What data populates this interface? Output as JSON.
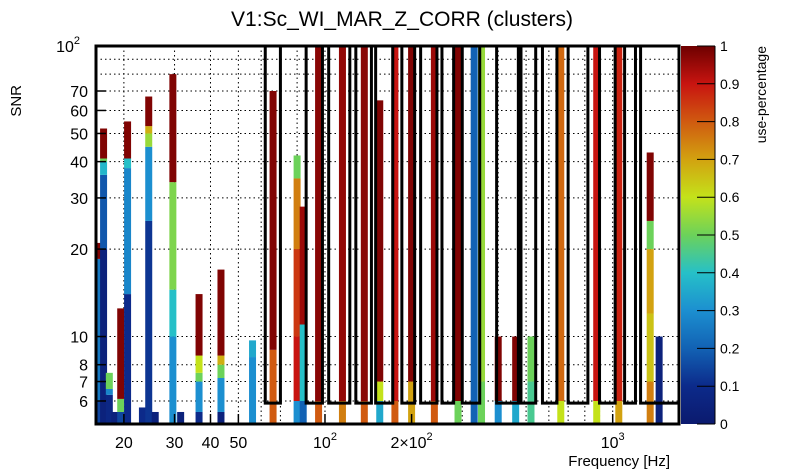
{
  "chart_data": {
    "type": "heatmap",
    "title": "V1:Sc_WI_MAR_Z_CORR (clusters)",
    "xlabel": "Frequency [Hz]",
    "ylabel": "SNR",
    "xscale": "log",
    "yscale": "log",
    "xlim": [
      16,
      1700
    ],
    "ylim": [
      5,
      100
    ],
    "grid": true,
    "x_tick_labels": [
      {
        "value": 20,
        "label": "20"
      },
      {
        "value": 30,
        "label": "30"
      },
      {
        "value": 40,
        "label": "40"
      },
      {
        "value": 50,
        "label": "50"
      },
      {
        "value": 100,
        "label": "10",
        "exp": "2"
      },
      {
        "value": 200,
        "label": "2×10",
        "exp": "2"
      },
      {
        "value": 1000,
        "label": "10",
        "exp": "3"
      }
    ],
    "y_tick_labels": [
      {
        "value": 6,
        "label": "6"
      },
      {
        "value": 7,
        "label": "7"
      },
      {
        "value": 8,
        "label": "8"
      },
      {
        "value": 10,
        "label": "10"
      },
      {
        "value": 20,
        "label": "20"
      },
      {
        "value": 30,
        "label": "30"
      },
      {
        "value": 40,
        "label": "40"
      },
      {
        "value": 50,
        "label": "50"
      },
      {
        "value": 60,
        "label": "60"
      },
      {
        "value": 70,
        "label": "70"
      },
      {
        "value": 100,
        "label": "10",
        "exp": "2"
      }
    ],
    "colorbar": {
      "label": "use-percentage",
      "range": [
        0,
        1
      ],
      "ticks": [
        "0",
        "0.1",
        "0.2",
        "0.3",
        "0.4",
        "0.5",
        "0.6",
        "0.7",
        "0.8",
        "0.9",
        "1"
      ]
    },
    "columns": [
      {
        "f": 16.4,
        "segments": [
          [
            5,
            6,
            0.15
          ],
          [
            6,
            18.5,
            0.25
          ],
          [
            18.5,
            21,
            0.98
          ]
        ]
      },
      {
        "f": 17.0,
        "segments": [
          [
            5,
            20,
            0.05
          ],
          [
            20,
            36,
            0.18
          ],
          [
            36,
            40,
            0.38
          ],
          [
            40,
            41,
            0.5
          ],
          [
            41,
            52,
            0.98
          ]
        ]
      },
      {
        "f": 17.8,
        "segments": [
          [
            5,
            6.3,
            0.08
          ],
          [
            6.3,
            6.6,
            0.28
          ],
          [
            6.6,
            7.5,
            0.5
          ]
        ]
      },
      {
        "f": 18.6,
        "segments": [
          [
            5,
            5.5,
            0.05
          ]
        ]
      },
      {
        "f": 19.5,
        "segments": [
          [
            5,
            5.5,
            0.15
          ],
          [
            5.5,
            6.1,
            0.5
          ],
          [
            6.1,
            12.5,
            0.98
          ]
        ]
      },
      {
        "f": 20.6,
        "segments": [
          [
            5,
            14,
            0.1
          ],
          [
            14,
            38,
            0.28
          ],
          [
            38,
            41,
            0.4
          ],
          [
            41,
            55,
            0.98
          ]
        ]
      },
      {
        "f": 23.2,
        "segments": [
          [
            5,
            5.7,
            0.1
          ]
        ]
      },
      {
        "f": 24.4,
        "segments": [
          [
            5,
            25,
            0.12
          ],
          [
            25,
            45,
            0.3
          ],
          [
            45,
            50,
            0.55
          ],
          [
            50,
            53,
            0.68
          ],
          [
            53,
            67,
            0.98
          ]
        ]
      },
      {
        "f": 25.7,
        "segments": [
          [
            5,
            5.5,
            0.05
          ]
        ]
      },
      {
        "f": 29.6,
        "segments": [
          [
            5,
            10,
            0.3
          ],
          [
            10,
            14.5,
            0.4
          ],
          [
            14.5,
            34,
            0.52
          ],
          [
            34,
            80,
            0.98
          ]
        ]
      },
      {
        "f": 31.5,
        "segments": [
          [
            5,
            5.5,
            0.05
          ]
        ]
      },
      {
        "f": 36.5,
        "segments": [
          [
            5,
            5.5,
            0.1
          ],
          [
            5.5,
            7,
            0.3
          ],
          [
            7,
            7.5,
            0.5
          ],
          [
            7.5,
            8.6,
            0.6
          ],
          [
            8.6,
            14,
            0.98
          ]
        ]
      },
      {
        "f": 43.5,
        "segments": [
          [
            5,
            5.5,
            0.05
          ],
          [
            5.5,
            7.2,
            0.3
          ],
          [
            7.2,
            8,
            0.5
          ],
          [
            8,
            8.6,
            0.68
          ],
          [
            8.6,
            17,
            0.98
          ]
        ]
      },
      {
        "f": 56,
        "segments": [
          [
            5,
            8.5,
            0.3
          ],
          [
            8.5,
            9.7,
            0.35
          ]
        ]
      },
      {
        "f": 66,
        "segments": [
          [
            5,
            9,
            0.8
          ],
          [
            9,
            70,
            0.98
          ]
        ]
      },
      {
        "f": 80,
        "segments": [
          [
            5,
            6,
            0.3
          ],
          [
            6,
            10,
            0.9
          ],
          [
            10,
            20,
            0.85
          ],
          [
            20,
            35,
            0.75
          ],
          [
            35,
            42,
            0.5
          ]
        ]
      },
      {
        "f": 84,
        "segments": [
          [
            5,
            6,
            0.2
          ],
          [
            6,
            11,
            0.4
          ],
          [
            11,
            28,
            0.95
          ]
        ]
      },
      {
        "f": 95,
        "segments": [
          [
            5,
            6,
            0.8
          ],
          [
            6,
            100,
            0.97
          ]
        ]
      },
      {
        "f": 115,
        "segments": [
          [
            5,
            6,
            0.75
          ],
          [
            6,
            100,
            0.96
          ]
        ]
      },
      {
        "f": 137,
        "segments": [
          [
            5,
            6,
            0.8
          ],
          [
            6,
            100,
            0.97
          ]
        ]
      },
      {
        "f": 155,
        "segments": [
          [
            5,
            6,
            0.35
          ],
          [
            6,
            7,
            0.6
          ],
          [
            7,
            65,
            0.98
          ]
        ]
      },
      {
        "f": 175,
        "segments": [
          [
            5,
            6,
            0.8
          ],
          [
            6,
            100,
            0.9
          ]
        ]
      },
      {
        "f": 200,
        "segments": [
          [
            5,
            7,
            0.7
          ],
          [
            7,
            100,
            0.98
          ]
        ]
      },
      {
        "f": 240,
        "segments": [
          [
            5,
            6,
            0.8
          ],
          [
            6,
            100,
            0.95
          ]
        ]
      },
      {
        "f": 290,
        "segments": [
          [
            5,
            6,
            0.5
          ],
          [
            6,
            100,
            0.98
          ]
        ]
      },
      {
        "f": 330,
        "segments": [
          [
            5,
            100,
            0.2
          ]
        ]
      },
      {
        "f": 350,
        "segments": [
          [
            5,
            7,
            0.5
          ],
          [
            7,
            100,
            0.55
          ]
        ]
      },
      {
        "f": 400,
        "segments": [
          [
            5,
            6,
            0.3
          ],
          [
            6,
            10,
            0.98
          ]
        ]
      },
      {
        "f": 460,
        "segments": [
          [
            5,
            6,
            0.35
          ],
          [
            6,
            10,
            0.98
          ]
        ]
      },
      {
        "f": 520,
        "segments": [
          [
            5,
            7,
            0.45
          ],
          [
            7,
            10,
            0.5
          ]
        ]
      },
      {
        "f": 660,
        "segments": [
          [
            5,
            6,
            0.6
          ],
          [
            6,
            100,
            0.78
          ]
        ]
      },
      {
        "f": 880,
        "segments": [
          [
            5,
            6,
            0.6
          ],
          [
            6,
            100,
            0.9
          ]
        ]
      },
      {
        "f": 1050,
        "segments": [
          [
            5,
            6,
            0.7
          ],
          [
            6,
            100,
            0.88
          ]
        ]
      },
      {
        "f": 1350,
        "segments": [
          [
            5,
            7,
            0.75
          ],
          [
            7,
            12,
            0.65
          ],
          [
            12,
            20,
            0.7
          ],
          [
            20,
            25,
            0.5
          ],
          [
            25,
            43,
            0.98
          ]
        ]
      },
      {
        "f": 1450,
        "segments": [
          [
            5,
            10,
            0.05
          ]
        ]
      }
    ],
    "outlined_bands": [
      [
        62,
        70
      ],
      [
        86,
        98
      ],
      [
        103,
        122
      ],
      [
        128,
        145
      ],
      [
        150,
        172
      ],
      [
        185,
        205
      ],
      [
        215,
        245
      ],
      [
        255,
        280
      ],
      [
        300,
        345
      ],
      [
        395,
        470
      ],
      [
        480,
        540
      ],
      [
        570,
        640
      ],
      [
        700,
        820
      ],
      [
        900,
        1020
      ],
      [
        1100,
        1200
      ],
      [
        1250,
        1700
      ]
    ]
  }
}
